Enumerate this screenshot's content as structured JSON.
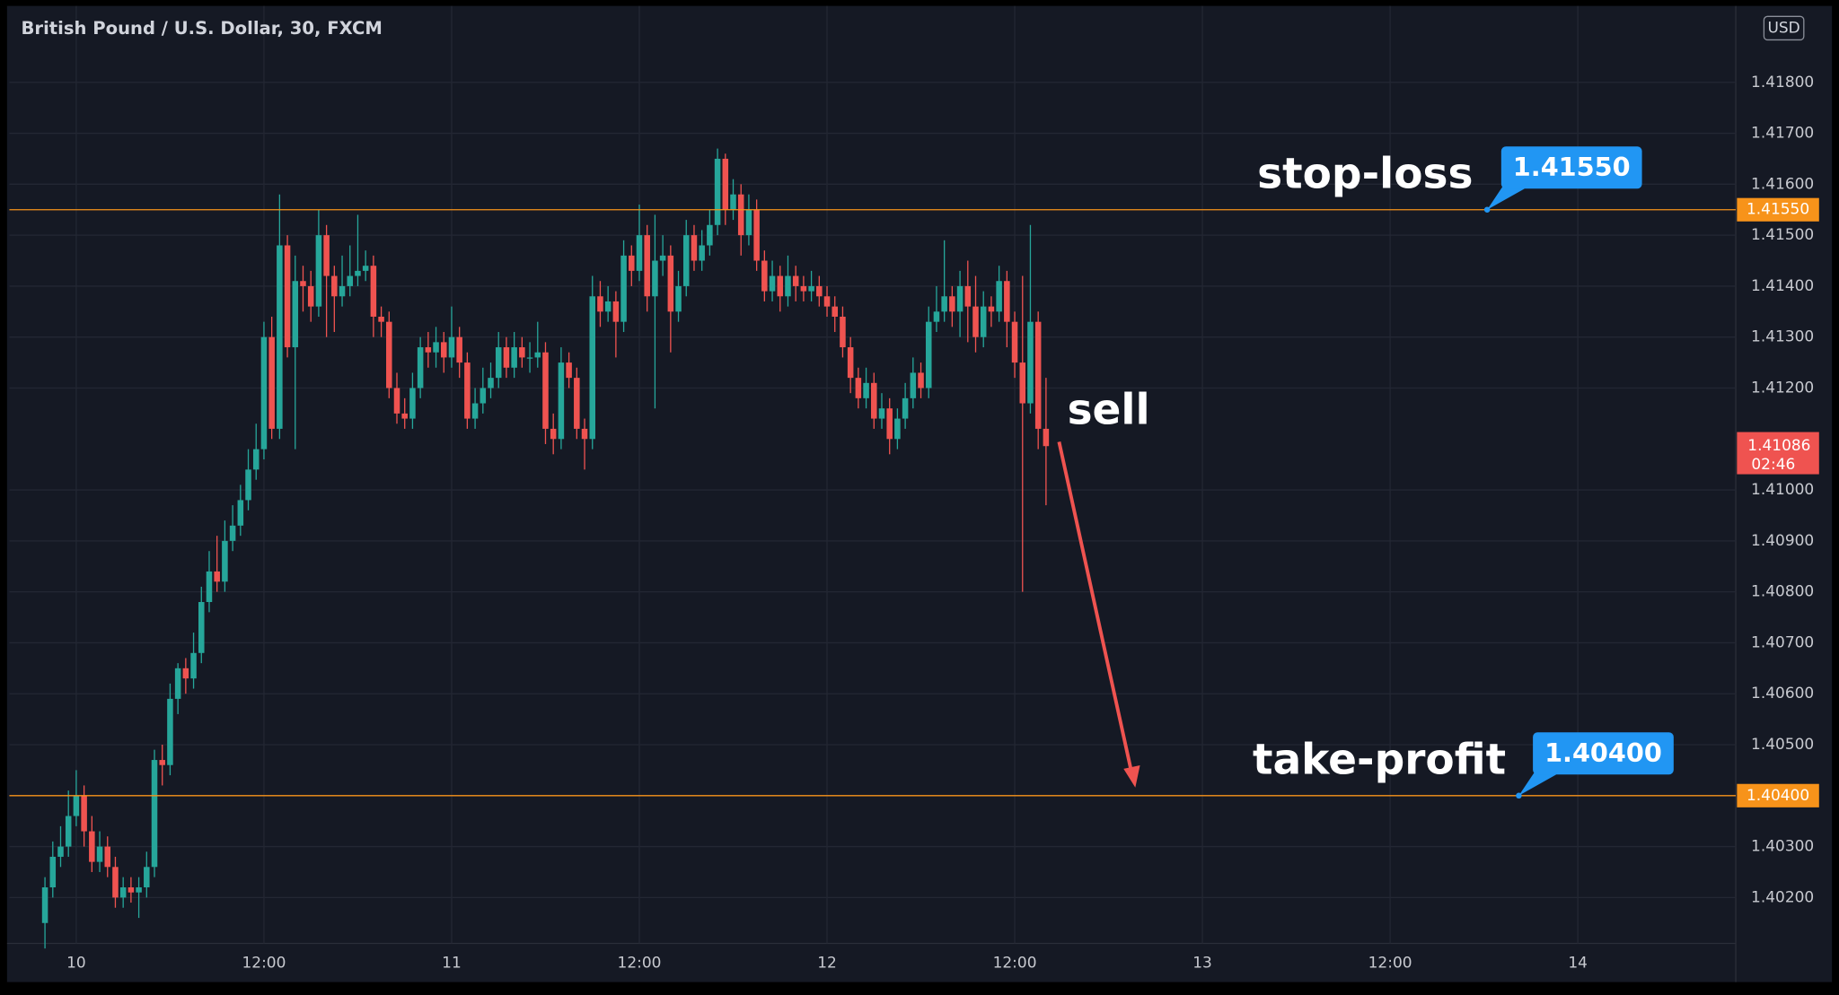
{
  "chart_data": {
    "type": "candlestick",
    "title": "British Pound / U.S. Dollar, 30, FXCM",
    "currency": "USD",
    "up_color": "#26a69a",
    "down_color": "#ef5350",
    "grid": true,
    "x": [
      -2,
      -1.5,
      -1,
      -0.5,
      0,
      0.5,
      1,
      1.5,
      2,
      2.5,
      3,
      3.5,
      4,
      4.5,
      5,
      5.5,
      6,
      6.5,
      7,
      7.5,
      8,
      8.5,
      9,
      9.5,
      10,
      10.5,
      11,
      11.5,
      12,
      12.5,
      13,
      13.5,
      14,
      14.5,
      15,
      15.5,
      16,
      16.5,
      17,
      17.5,
      18,
      18.5,
      19,
      19.5,
      20,
      20.5,
      21,
      21.5,
      22,
      22.5,
      23,
      23.5,
      24,
      24.5,
      25,
      25.5,
      26,
      26.5,
      27,
      27.5,
      28,
      28.5,
      29,
      29.5,
      30,
      30.5,
      31,
      31.5,
      32,
      32.5,
      33,
      33.5,
      34,
      34.5,
      35,
      35.5,
      36,
      36.5,
      37,
      37.5,
      38,
      38.5,
      39,
      39.5,
      40,
      40.5,
      41,
      41.5,
      42,
      42.5,
      43,
      43.5,
      44,
      44.5,
      45,
      45.5,
      46,
      46.5,
      47,
      47.5,
      48,
      48.5,
      49,
      49.5,
      50,
      50.5,
      51,
      51.5,
      52,
      52.5,
      53,
      53.5,
      54,
      54.5,
      55,
      55.5,
      56,
      56.5,
      57,
      57.5,
      58,
      58.5,
      59,
      59.5,
      60,
      60.5,
      61,
      61.5,
      62
    ],
    "open": [
      1.4015,
      1.4022,
      1.4028,
      1.403,
      1.4036,
      1.404,
      1.4033,
      1.4027,
      1.403,
      1.4026,
      1.402,
      1.4022,
      1.4021,
      1.4022,
      1.4026,
      1.4047,
      1.4046,
      1.4059,
      1.4065,
      1.4063,
      1.4068,
      1.4078,
      1.4084,
      1.4082,
      1.409,
      1.4093,
      1.4098,
      1.4104,
      1.4108,
      1.413,
      1.4112,
      1.4148,
      1.4128,
      1.4141,
      1.414,
      1.4136,
      1.415,
      1.4142,
      1.4138,
      1.414,
      1.4142,
      1.4143,
      1.4144,
      1.4134,
      1.4133,
      1.412,
      1.4115,
      1.4114,
      1.412,
      1.4128,
      1.4127,
      1.4129,
      1.4126,
      1.413,
      1.4125,
      1.4114,
      1.4117,
      1.412,
      1.4122,
      1.4128,
      1.4124,
      1.4128,
      1.4126,
      1.4126,
      1.4127,
      1.4112,
      1.411,
      1.4125,
      1.4122,
      1.4112,
      1.411,
      1.4138,
      1.4135,
      1.4137,
      1.4133,
      1.4146,
      1.4143,
      1.415,
      1.4138,
      1.4145,
      1.4146,
      1.4135,
      1.414,
      1.415,
      1.4145,
      1.4148,
      1.4152,
      1.4165,
      1.4155,
      1.4158,
      1.415,
      1.4155,
      1.4145,
      1.4139,
      1.4142,
      1.4138,
      1.4142,
      1.414,
      1.4139,
      1.414,
      1.4138,
      1.4136,
      1.4134,
      1.4128,
      1.4122,
      1.4118,
      1.4121,
      1.4114,
      1.4116,
      1.411,
      1.4114,
      1.4118,
      1.4123,
      1.412,
      1.4133,
      1.4135,
      1.4138,
      1.4135,
      1.414,
      1.4136,
      1.413,
      1.4136,
      1.4135,
      1.4141,
      1.4133,
      1.4125,
      1.4117,
      1.4133,
      1.4112
    ],
    "high": [
      1.4024,
      1.4031,
      1.4034,
      1.4041,
      1.4045,
      1.4042,
      1.4036,
      1.4033,
      1.4032,
      1.4028,
      1.4024,
      1.4024,
      1.4024,
      1.4029,
      1.4049,
      1.405,
      1.4062,
      1.4066,
      1.4067,
      1.4072,
      1.4081,
      1.4088,
      1.4091,
      1.4094,
      1.4097,
      1.4101,
      1.4108,
      1.4113,
      1.4133,
      1.4134,
      1.4158,
      1.415,
      1.4146,
      1.4144,
      1.4143,
      1.4155,
      1.4152,
      1.4144,
      1.4146,
      1.4148,
      1.4154,
      1.4147,
      1.4146,
      1.4136,
      1.4135,
      1.4123,
      1.4118,
      1.4123,
      1.413,
      1.4131,
      1.4132,
      1.4131,
      1.4136,
      1.4132,
      1.4127,
      1.412,
      1.4124,
      1.4125,
      1.4131,
      1.413,
      1.4131,
      1.413,
      1.4129,
      1.4133,
      1.4129,
      1.4115,
      1.4128,
      1.4127,
      1.4124,
      1.4114,
      1.4142,
      1.4141,
      1.414,
      1.4139,
      1.4149,
      1.4148,
      1.4156,
      1.4152,
      1.4154,
      1.415,
      1.4148,
      1.4143,
      1.4153,
      1.4152,
      1.4151,
      1.4155,
      1.4167,
      1.4166,
      1.4161,
      1.416,
      1.4158,
      1.4157,
      1.4147,
      1.4145,
      1.4144,
      1.4146,
      1.4144,
      1.4142,
      1.4143,
      1.4142,
      1.414,
      1.4138,
      1.4136,
      1.413,
      1.4124,
      1.4124,
      1.4123,
      1.4119,
      1.4118,
      1.4116,
      1.4121,
      1.4126,
      1.4125,
      1.4136,
      1.414,
      1.4149,
      1.414,
      1.4143,
      1.4145,
      1.4142,
      1.4139,
      1.4138,
      1.4144,
      1.4143,
      1.4135,
      1.4142,
      1.4152,
      1.4135,
      1.4122
    ],
    "low": [
      1.401,
      1.402,
      1.4026,
      1.4028,
      1.4034,
      1.403,
      1.4025,
      1.4025,
      1.4024,
      1.4018,
      1.4018,
      1.4019,
      1.4016,
      1.402,
      1.4024,
      1.4042,
      1.4044,
      1.4056,
      1.406,
      1.4061,
      1.4066,
      1.4076,
      1.408,
      1.408,
      1.4088,
      1.4091,
      1.4096,
      1.4102,
      1.4106,
      1.411,
      1.411,
      1.4126,
      1.4108,
      1.4135,
      1.4133,
      1.4134,
      1.413,
      1.4131,
      1.4136,
      1.4138,
      1.414,
      1.4141,
      1.413,
      1.413,
      1.4118,
      1.4113,
      1.4112,
      1.4112,
      1.4118,
      1.4124,
      1.4124,
      1.4123,
      1.4124,
      1.4122,
      1.4112,
      1.4112,
      1.4115,
      1.4118,
      1.412,
      1.4122,
      1.4122,
      1.4124,
      1.4123,
      1.4124,
      1.4109,
      1.4107,
      1.4108,
      1.412,
      1.411,
      1.4104,
      1.4108,
      1.4132,
      1.4133,
      1.4126,
      1.4131,
      1.414,
      1.4141,
      1.4135,
      1.4116,
      1.4142,
      1.4127,
      1.4133,
      1.4138,
      1.4143,
      1.4143,
      1.4146,
      1.415,
      1.4152,
      1.4153,
      1.4146,
      1.4148,
      1.4143,
      1.4137,
      1.4137,
      1.4135,
      1.4136,
      1.4137,
      1.4137,
      1.4137,
      1.4136,
      1.4134,
      1.4131,
      1.4126,
      1.4119,
      1.4116,
      1.4116,
      1.4112,
      1.4112,
      1.4107,
      1.4108,
      1.4112,
      1.4116,
      1.4118,
      1.4118,
      1.4131,
      1.4133,
      1.4132,
      1.413,
      1.4129,
      1.4127,
      1.4128,
      1.4132,
      1.4133,
      1.4128,
      1.4122,
      1.408,
      1.4115,
      1.4108,
      1.4097
    ],
    "close": [
      1.4022,
      1.4028,
      1.403,
      1.4036,
      1.404,
      1.4033,
      1.4027,
      1.403,
      1.4026,
      1.402,
      1.4022,
      1.4021,
      1.4022,
      1.4026,
      1.4047,
      1.4046,
      1.4059,
      1.4065,
      1.4063,
      1.4068,
      1.4078,
      1.4084,
      1.4082,
      1.409,
      1.4093,
      1.4098,
      1.4104,
      1.4108,
      1.413,
      1.4112,
      1.4148,
      1.4128,
      1.4141,
      1.414,
      1.4136,
      1.415,
      1.4142,
      1.4138,
      1.414,
      1.4142,
      1.4143,
      1.4144,
      1.4134,
      1.4133,
      1.412,
      1.4115,
      1.4114,
      1.412,
      1.4128,
      1.4127,
      1.4129,
      1.4126,
      1.413,
      1.4125,
      1.4114,
      1.4117,
      1.412,
      1.4122,
      1.4128,
      1.4124,
      1.4128,
      1.4126,
      1.4126,
      1.4127,
      1.4112,
      1.411,
      1.4125,
      1.4122,
      1.4112,
      1.411,
      1.4138,
      1.4135,
      1.4137,
      1.4133,
      1.4146,
      1.4143,
      1.415,
      1.4138,
      1.4145,
      1.4146,
      1.4135,
      1.414,
      1.415,
      1.4145,
      1.4148,
      1.4152,
      1.4165,
      1.4155,
      1.4158,
      1.415,
      1.4155,
      1.4145,
      1.4139,
      1.4142,
      1.4138,
      1.4142,
      1.414,
      1.4139,
      1.414,
      1.4138,
      1.4136,
      1.4134,
      1.4128,
      1.4122,
      1.4118,
      1.4121,
      1.4114,
      1.4116,
      1.411,
      1.4114,
      1.4118,
      1.4123,
      1.412,
      1.4133,
      1.4135,
      1.4138,
      1.4135,
      1.414,
      1.4136,
      1.413,
      1.4136,
      1.4135,
      1.4141,
      1.4133,
      1.4125,
      1.4117,
      1.4133,
      1.4112,
      1.41086
    ],
    "xlim": [
      -4.275,
      106.1
    ],
    "xticks": [
      {
        "value": 0,
        "label": "10"
      },
      {
        "value": 12,
        "label": "12:00"
      },
      {
        "value": 24,
        "label": "11"
      },
      {
        "value": 36,
        "label": "12:00"
      },
      {
        "value": 48,
        "label": "12"
      },
      {
        "value": 60,
        "label": "12:00"
      },
      {
        "value": 72,
        "label": "13"
      },
      {
        "value": 84,
        "label": "12:00"
      },
      {
        "value": 96,
        "label": "14"
      }
    ],
    "ylim": [
      1.4011,
      1.4195
    ],
    "yticks": [
      {
        "value": 1.402,
        "label": "1.40200"
      },
      {
        "value": 1.403,
        "label": "1.40300"
      },
      {
        "value": 1.404,
        "label": "1.40400"
      },
      {
        "value": 1.405,
        "label": "1.40500"
      },
      {
        "value": 1.406,
        "label": "1.40600"
      },
      {
        "value": 1.407,
        "label": "1.40700"
      },
      {
        "value": 1.408,
        "label": "1.40800"
      },
      {
        "value": 1.409,
        "label": "1.40900"
      },
      {
        "value": 1.41,
        "label": "1.41000"
      },
      {
        "value": 1.412,
        "label": "1.41200"
      },
      {
        "value": 1.413,
        "label": "1.41300"
      },
      {
        "value": 1.414,
        "label": "1.41400"
      },
      {
        "value": 1.415,
        "label": "1.41500"
      },
      {
        "value": 1.416,
        "label": "1.41600"
      },
      {
        "value": 1.417,
        "label": "1.41700"
      },
      {
        "value": 1.418,
        "label": "1.41800"
      }
    ],
    "levels": [
      {
        "name": "stop-loss",
        "value": 1.4155,
        "label": "1.41550",
        "color": "#f7931a"
      },
      {
        "name": "take-profit",
        "value": 1.404,
        "label": "1.40400",
        "color": "#f7931a"
      }
    ],
    "last_price": {
      "value": 1.41086,
      "label": "1.41086",
      "countdown": "02:46",
      "color": "#ef5350"
    },
    "annotation": "sell",
    "callout_color": "#2196f3"
  }
}
